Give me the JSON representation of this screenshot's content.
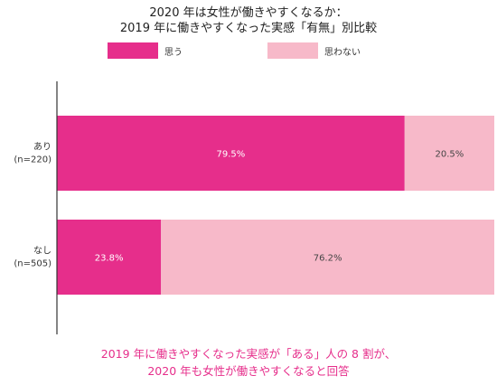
{
  "chart_data": {
    "type": "bar",
    "orientation": "horizontal",
    "stacked": true,
    "title_lines": [
      "2020 年は女性が働きやすくなるか：",
      "2019 年に働きやすくなった実感「有無」別比較"
    ],
    "categories": [
      [
        "あり",
        "(n=220)"
      ],
      [
        "なし",
        "(n=505)"
      ]
    ],
    "series": [
      {
        "name": "思う",
        "values": [
          79.5,
          23.8
        ],
        "labels": [
          "79.5%",
          "23.8%"
        ],
        "color": "#e62e8b"
      },
      {
        "name": "思わない",
        "values": [
          20.5,
          76.2
        ],
        "labels": [
          "20.5%",
          "76.2%"
        ],
        "color": "#f7b9c9"
      }
    ],
    "xlim": [
      0,
      100
    ],
    "grid": false,
    "legend": "top"
  },
  "footnote_lines": [
    "2019 年に働きやすくなった実感が「ある」人の 8 割が、",
    "2020 年も女性が働きやすくなると回答"
  ]
}
